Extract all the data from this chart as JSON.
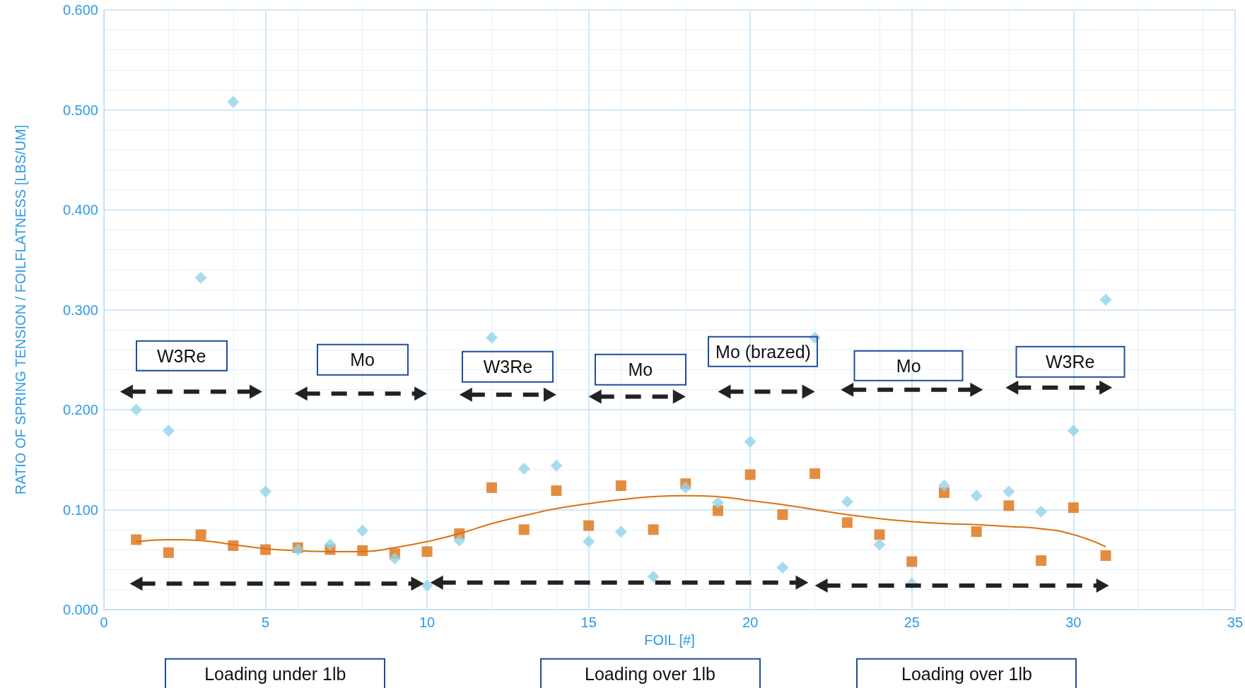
{
  "chart_data": {
    "type": "scatter",
    "xlabel": "FOIL [#]",
    "ylabel": "RATIO OF SPRING TENSION / FOILFLATNESS [LBS/UM]",
    "x": [
      1,
      2,
      3,
      4,
      5,
      6,
      7,
      8,
      9,
      10,
      11,
      12,
      13,
      14,
      15,
      16,
      17,
      18,
      19,
      20,
      21,
      22,
      23,
      24,
      25,
      26,
      27,
      28,
      29,
      30,
      31
    ],
    "series": [
      {
        "marker": "diamond",
        "color": "#92d3e8",
        "values": [
          0.2,
          0.179,
          0.332,
          0.508,
          0.118,
          0.06,
          0.065,
          0.079,
          0.051,
          0.024,
          0.069,
          0.272,
          0.141,
          0.144,
          0.068,
          0.078,
          0.033,
          0.122,
          0.107,
          0.168,
          0.042,
          0.272,
          0.108,
          0.065,
          0.026,
          0.124,
          0.114,
          0.118,
          0.098,
          0.179,
          0.31
        ]
      },
      {
        "marker": "square",
        "color": "#dd7010",
        "values": [
          0.07,
          0.057,
          0.075,
          0.064,
          0.06,
          0.062,
          0.06,
          0.059,
          0.056,
          0.058,
          0.076,
          0.122,
          0.08,
          0.119,
          0.084,
          0.124,
          0.08,
          0.126,
          0.099,
          0.135,
          0.095,
          0.136,
          0.087,
          0.075,
          0.048,
          0.117,
          0.078,
          0.104,
          0.049,
          0.102,
          0.054
        ]
      },
      {
        "type": "line",
        "marker": "none",
        "line_style": "solid",
        "color": "#dd7010",
        "values": [
          0.068,
          0.07,
          0.069,
          0.065,
          0.061,
          0.059,
          0.058,
          0.058,
          0.062,
          0.068,
          0.076,
          0.086,
          0.094,
          0.101,
          0.106,
          0.11,
          0.113,
          0.114,
          0.113,
          0.109,
          0.105,
          0.1,
          0.095,
          0.091,
          0.088,
          0.086,
          0.085,
          0.083,
          0.081,
          0.075,
          0.063
        ]
      }
    ],
    "xlim": [
      0,
      35
    ],
    "xticks": [
      0,
      5,
      10,
      15,
      20,
      25,
      30,
      35
    ],
    "ylim": [
      0,
      0.6
    ],
    "yticks": [
      {
        "value": 0,
        "label": "0.000"
      },
      {
        "value": 0.1,
        "label": "0.100"
      },
      {
        "value": 0.2,
        "label": "0.200"
      },
      {
        "value": 0.3,
        "label": "0.300"
      },
      {
        "value": 0.4,
        "label": "0.400"
      },
      {
        "value": 0.5,
        "label": "0.500"
      },
      {
        "value": 0.6,
        "label": "0.600"
      }
    ],
    "grid": true,
    "annotations": [
      "W3Re",
      "Mo",
      "W3Re",
      "Mo",
      "Mo (brazed)",
      "Mo",
      "W3Re",
      "Loading under 1lb",
      "Loading over 1lb",
      "Loading over 1lb"
    ]
  }
}
